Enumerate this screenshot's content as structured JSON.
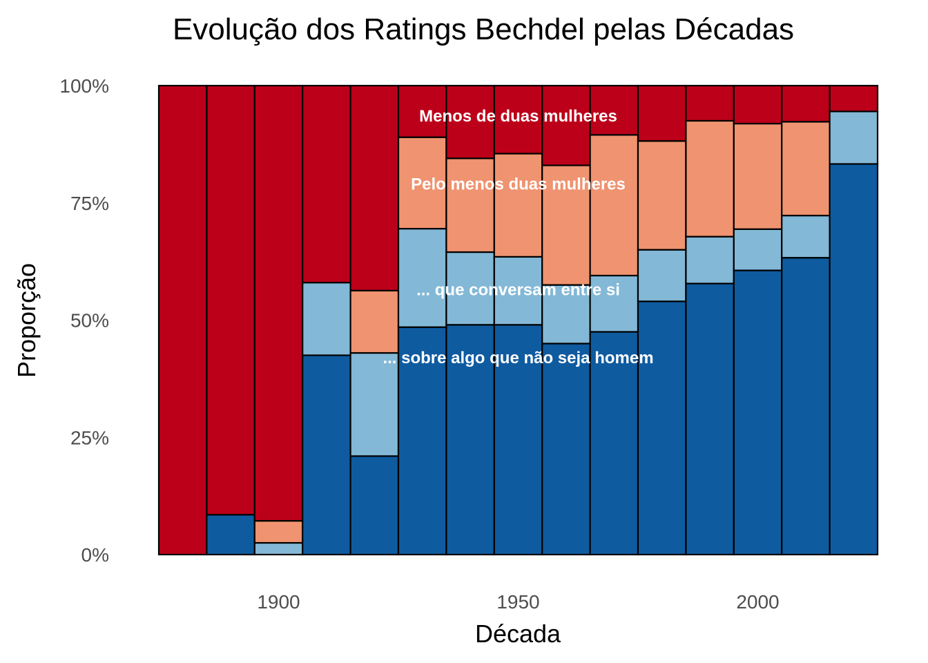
{
  "chart_data": {
    "type": "bar",
    "stacked": true,
    "normalized": true,
    "title": "Evolução dos Ratings Bechdel pelas Décadas",
    "xlabel": "Década",
    "ylabel": "Proporção",
    "categories": [
      1880,
      1890,
      1900,
      1910,
      1920,
      1930,
      1940,
      1950,
      1960,
      1970,
      1980,
      1990,
      2000,
      2010,
      2020
    ],
    "x_ticks": [
      1900,
      1950,
      2000
    ],
    "xlim": [
      1875,
      2025
    ],
    "ylim": [
      0,
      1
    ],
    "y_ticks": [
      {
        "value": 0,
        "label": "0%"
      },
      {
        "value": 0.25,
        "label": "25%"
      },
      {
        "value": 0.5,
        "label": "50%"
      },
      {
        "value": 0.75,
        "label": "75%"
      },
      {
        "value": 1,
        "label": "100%"
      }
    ],
    "grid": false,
    "series": [
      {
        "key": "s3",
        "color": "#0f5ba0",
        "values": [
          0,
          0.085,
          0,
          0.425,
          0.21,
          0.485,
          0.49,
          0.49,
          0.45,
          0.475,
          0.54,
          0.578,
          0.606,
          0.633,
          0.833
        ]
      },
      {
        "key": "s2",
        "color": "#83b8d6",
        "values": [
          0,
          0,
          0.025,
          0.155,
          0.22,
          0.21,
          0.155,
          0.145,
          0.125,
          0.12,
          0.11,
          0.1,
          0.088,
          0.09,
          0.112
        ]
      },
      {
        "key": "s1",
        "color": "#ef9370",
        "values": [
          0,
          0,
          0.047,
          0,
          0.133,
          0.195,
          0.2,
          0.22,
          0.255,
          0.3,
          0.232,
          0.247,
          0.225,
          0.2,
          0
        ]
      },
      {
        "key": "s0",
        "color": "#bc001a",
        "values": [
          1,
          0.915,
          0.928,
          0.42,
          0.437,
          0.11,
          0.155,
          0.145,
          0.17,
          0.105,
          0.118,
          0.075,
          0.081,
          0.077,
          0.055
        ]
      }
    ],
    "annotations": [
      {
        "text": "Menos de duas mulheres",
        "x": 1950,
        "y": 0.935
      },
      {
        "text": "Pelo menos duas mulheres",
        "x": 1950,
        "y": 0.79
      },
      {
        "text": "... que conversam entre si",
        "x": 1950,
        "y": 0.565
      },
      {
        "text": "... sobre algo que não seja homem",
        "x": 1950,
        "y": 0.42
      }
    ]
  }
}
